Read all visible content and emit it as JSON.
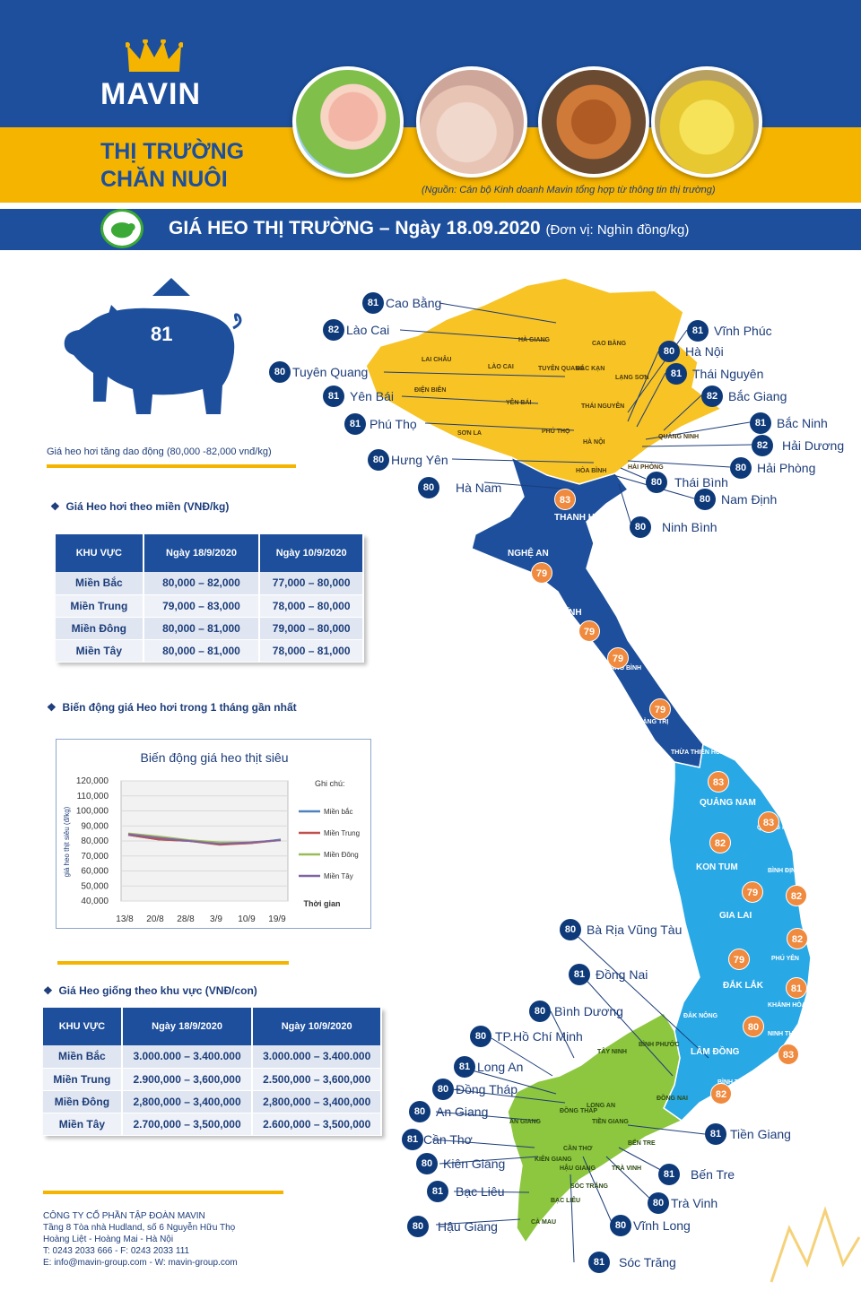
{
  "header": {
    "brand": "MAVIN",
    "title_line1": "THỊ TRƯỜNG",
    "title_line2": "CHĂN NUÔI",
    "source_note": "(Nguồn: Cán bộ Kinh doanh Mavin tổng hợp từ thông tin thị trường)",
    "main_title": "GIÁ HEO THỊ TRƯỜNG – Ngày 18.09.2020",
    "unit": "(Đơn vị: Nghìn đồng/kg)"
  },
  "pig": {
    "value": "81",
    "note": "Giá heo hơi tăng dao động (80,000 -82,000 vnđ/kg)"
  },
  "region_table": {
    "heading": "Giá Heo hơi theo miền (VNĐ/kg)",
    "headers": [
      "KHU VỰC",
      "Ngày 18/9/2020",
      "Ngày 10/9/2020"
    ],
    "rows": [
      [
        "Miền Bắc",
        "80,000 – 82,000",
        "77,000 – 80,000"
      ],
      [
        "Miền Trung",
        "79,000 – 83,000",
        "78,000 – 80,000"
      ],
      [
        "Miền Đông",
        "80,000 – 81,000",
        "79,000 – 80,000"
      ],
      [
        "Miền Tây",
        "80,000 – 81,000",
        "78,000 – 81,000"
      ]
    ]
  },
  "chart_section": {
    "heading": "Biến động giá Heo hơi trong 1 tháng gần nhất"
  },
  "chart_data": {
    "type": "line",
    "title": "Biến động giá heo thịt siêu",
    "ylabel": "giá heo thịt siêu (đ/kg)",
    "xlabel": "Thời gian",
    "legend_title": "Ghi chú:",
    "legend_position": "right",
    "categories": [
      "13/8",
      "20/8",
      "28/8",
      "3/9",
      "10/9",
      "19/9"
    ],
    "yticks": [
      "120,000",
      "110,000",
      "100,000",
      "90,000",
      "80,000",
      "70,000",
      "60,000",
      "50,000",
      "40,000"
    ],
    "ylim": [
      40000,
      120000
    ],
    "series": [
      {
        "name": "Miền bắc",
        "color": "#4f81bd",
        "values": [
          84000,
          81000,
          80000,
          78000,
          78500,
          81000
        ]
      },
      {
        "name": "Miền Trung",
        "color": "#c0504d",
        "values": [
          84000,
          81000,
          80000,
          77500,
          78500,
          80500
        ]
      },
      {
        "name": "Miền Đông",
        "color": "#9bbb59",
        "values": [
          85000,
          83000,
          80500,
          79000,
          79000,
          80500
        ]
      },
      {
        "name": "Miền Tây",
        "color": "#8064a2",
        "values": [
          84500,
          82000,
          80000,
          78000,
          79000,
          80500
        ]
      }
    ]
  },
  "seedling_table": {
    "heading": "Giá Heo giống theo khu vực (VNĐ/con)",
    "headers": [
      "KHU VỰC",
      "Ngày 18/9/2020",
      "Ngày 10/9/2020"
    ],
    "rows": [
      [
        "Miền Bắc",
        "3.000.000 – 3.400.000",
        "3.000.000 – 3.400.000"
      ],
      [
        "Miền Trung",
        "2.900,000 – 3,600,000",
        "2.500,000 – 3,600,000"
      ],
      [
        "Miền Đông",
        "2,800,000 – 3,400,000",
        "2,800,000 – 3,400,000"
      ],
      [
        "Miền Tây",
        "2.700,000 – 3,500,000",
        "2.600,000 – 3,500,000"
      ]
    ]
  },
  "footer": {
    "company": "CÔNG TY CỔ PHẦN TẬP ĐOÀN MAVIN",
    "address1": "Tầng 8 Tòa nhà Hudland, số 6 Nguyễn Hữu Thọ",
    "address2": "Hoàng Liệt - Hoàng Mai - Hà Nội",
    "phone": "T: 0243 2033 666 - F: 0243 2033 111",
    "contact": "E: info@mavin-group.com - W: mavin-group.com"
  },
  "map_labels": [
    {
      "name": "Cao Bằng",
      "value": "81"
    },
    {
      "name": "Lào Cai",
      "value": "82"
    },
    {
      "name": "Tuyên Quang",
      "value": "80"
    },
    {
      "name": "Yên Bái",
      "value": "81"
    },
    {
      "name": "Phú Thọ",
      "value": "81"
    },
    {
      "name": "Hưng Yên",
      "value": "80"
    },
    {
      "name": "Hà Nam",
      "value": "80"
    },
    {
      "name": "Vĩnh Phúc",
      "value": "81"
    },
    {
      "name": "Hà Nội",
      "value": "80"
    },
    {
      "name": "Thái Nguyên",
      "value": "81"
    },
    {
      "name": "Bắc Giang",
      "value": "82"
    },
    {
      "name": "Bắc Ninh",
      "value": "81"
    },
    {
      "name": "Hải Dương",
      "value": "82"
    },
    {
      "name": "Hải Phòng",
      "value": "80"
    },
    {
      "name": "Thái Bình",
      "value": "80"
    },
    {
      "name": "Nam Định",
      "value": "80"
    },
    {
      "name": "Ninh Bình",
      "value": "80"
    },
    {
      "name": "Bà Rịa Vũng Tàu",
      "value": "80"
    },
    {
      "name": "Đồng Nai",
      "value": "81"
    },
    {
      "name": "Bình Dương",
      "value": "80"
    },
    {
      "name": "TP.Hồ Chí Minh",
      "value": "80"
    },
    {
      "name": "Long An",
      "value": "81"
    },
    {
      "name": "Đồng Tháp",
      "value": "80"
    },
    {
      "name": "An Giang",
      "value": "80"
    },
    {
      "name": "Cần Thơ",
      "value": "81"
    },
    {
      "name": "Kiên Giang",
      "value": "80"
    },
    {
      "name": "Bạc Liêu",
      "value": "81"
    },
    {
      "name": "Hậu Giang",
      "value": "80"
    },
    {
      "name": "Tiền Giang",
      "value": "81"
    },
    {
      "name": "Bến Tre",
      "value": "81"
    },
    {
      "name": "Trà Vinh",
      "value": "80"
    },
    {
      "name": "Vĩnh Long",
      "value": "80"
    },
    {
      "name": "Sóc Trăng",
      "value": "81"
    }
  ],
  "map_badges": [
    "83",
    "79",
    "79",
    "79",
    "79",
    "83",
    "83",
    "82",
    "79",
    "82",
    "82",
    "79",
    "81",
    "80",
    "83",
    "82"
  ],
  "map_region_labels": [
    "HÀ GIANG",
    "CAO BẰNG",
    "LAI CHÂU",
    "LÀO CAI",
    "TUYÊN QUANG",
    "BẮC KẠN",
    "LẠNG SƠN",
    "ĐIỆN BIÊN",
    "YÊN BÁI",
    "THÁI NGUYÊN",
    "SƠN LA",
    "PHÚ THỌ",
    "HÀ NỘI",
    "QUẢNG NINH",
    "HÒA BÌNH",
    "HẢI PHÒNG",
    "THANH HÓA",
    "NGHỆ AN",
    "HÀ TĨNH",
    "QUẢNG BÌNH",
    "QUẢNG TRỊ",
    "THỪA THIÊN HUẾ",
    "QUẢNG NAM",
    "QUẢNG NGÃI",
    "KON TUM",
    "BÌNH ĐỊNH",
    "GIA LAI",
    "PHÚ YÊN",
    "ĐẮK LẮK",
    "KHÁNH HÒA",
    "ĐẮK NÔNG",
    "NINH THUẬN",
    "LÂM ĐỒNG",
    "BÌNH THUẬN",
    "BÌNH PHƯỚC",
    "TÂY NINH",
    "ĐỒNG NAI",
    "LONG AN",
    "ĐỒNG THÁP",
    "AN GIANG",
    "TIỀN GIANG",
    "CẦN THƠ",
    "BẾN TRE",
    "KIÊN GIANG",
    "HẬU GIANG",
    "TRÀ VINH",
    "SÓC TRĂNG",
    "BẠC LIÊU",
    "CÀ MAU"
  ],
  "colors": {
    "navy": "#1d4f9c",
    "yellow": "#f5b400",
    "north": "#f7c325",
    "central_north": "#1d4f9c",
    "central_south": "#29a8e6",
    "south": "#8dc63f",
    "badge_orange": "#f08a3e"
  }
}
